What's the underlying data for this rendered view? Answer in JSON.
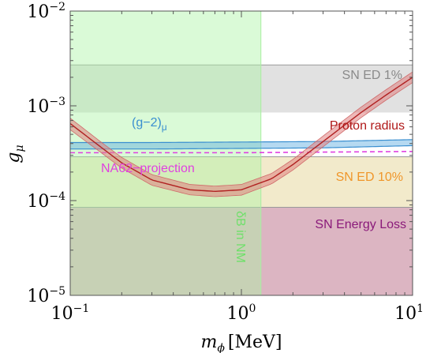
{
  "chart_data": {
    "type": "area",
    "xlabel": "m",
    "xlabel_sub": "ϕ",
    "xlabel_unit": "[MeV]",
    "ylabel": "g",
    "ylabel_sub": "μ",
    "x_scale": "log",
    "y_scale": "log",
    "xlim": [
      0.1,
      10
    ],
    "ylim": [
      1e-05,
      0.01
    ],
    "x_ticks": [
      {
        "value": 0.1,
        "base": "10",
        "exp": "−1"
      },
      {
        "value": 1,
        "base": "10",
        "exp": "0"
      },
      {
        "value": 10,
        "base": "10",
        "exp": "1"
      }
    ],
    "y_ticks": [
      {
        "value": 1e-05,
        "base": "10",
        "exp": "−5"
      },
      {
        "value": 0.0001,
        "base": "10",
        "exp": "−4"
      },
      {
        "value": 0.001,
        "base": "10",
        "exp": "−3"
      },
      {
        "value": 0.01,
        "base": "10",
        "exp": "−2"
      }
    ],
    "grid": false,
    "series": [
      {
        "key": "bbn",
        "label": "δB in NM",
        "kind": "vband",
        "x_range": [
          0.1,
          1.3
        ],
        "color": "#aef5a6",
        "opacity": 0.45,
        "label_color": "#6fe06a"
      },
      {
        "key": "sn_ed_1",
        "label": "SN ED 1%",
        "kind": "hband",
        "y_range": [
          0.00085,
          0.0027
        ],
        "color": "#b0b0b0",
        "opacity": 0.38,
        "label_color": "#8a8a8a"
      },
      {
        "key": "sn_ed_10",
        "label": "SN ED 10%",
        "kind": "hband",
        "y_range": [
          8.5e-05,
          0.00029
        ],
        "color": "#e8d9a0",
        "opacity": 0.55,
        "label_color": "#f0962a"
      },
      {
        "key": "sn_energy_loss",
        "label": "SN Energy Loss",
        "kind": "hband",
        "y_range": [
          1e-05,
          8.5e-05
        ],
        "color": "#c07890",
        "opacity": 0.55,
        "label_color": "#8a1a7a"
      },
      {
        "key": "g2",
        "label": "(g−2)",
        "label_sub": "μ",
        "kind": "band",
        "x": [
          0.1,
          0.3,
          1,
          3,
          10
        ],
        "y_lower": [
          0.00035,
          0.00035,
          0.000355,
          0.00036,
          0.00038
        ],
        "y_upper": [
          0.00041,
          0.00041,
          0.000415,
          0.00042,
          0.00044
        ],
        "color": "#5aaadf",
        "line_color": "#3a8fd0"
      },
      {
        "key": "na62",
        "label": "NA62−projection",
        "kind": "line",
        "dashed": true,
        "x": [
          0.1,
          1,
          10
        ],
        "y": [
          0.00032,
          0.00032,
          0.00033
        ],
        "color": "#e040e0"
      },
      {
        "key": "proton_radius",
        "label": "Proton radius",
        "kind": "band",
        "x": [
          0.1,
          0.15,
          0.2,
          0.3,
          0.5,
          0.7,
          1,
          1.5,
          2,
          3,
          5,
          7,
          10
        ],
        "y": [
          0.00065,
          0.00037,
          0.00025,
          0.000165,
          0.00013,
          0.000125,
          0.00013,
          0.00017,
          0.00024,
          0.00042,
          0.00085,
          0.0013,
          0.002
        ],
        "y_lower": [
          0.00056,
          0.000325,
          0.00022,
          0.000145,
          0.000115,
          0.00011,
          0.000114,
          0.00015,
          0.00021,
          0.00037,
          0.00075,
          0.00115,
          0.00176
        ],
        "y_upper": [
          0.00074,
          0.00042,
          0.000285,
          0.000188,
          0.000148,
          0.000142,
          0.000148,
          0.000193,
          0.000272,
          0.00048,
          0.00097,
          0.00148,
          0.00228
        ],
        "color": "#e08080",
        "line_color": "#b02020",
        "label_color": "#b01818"
      }
    ]
  }
}
